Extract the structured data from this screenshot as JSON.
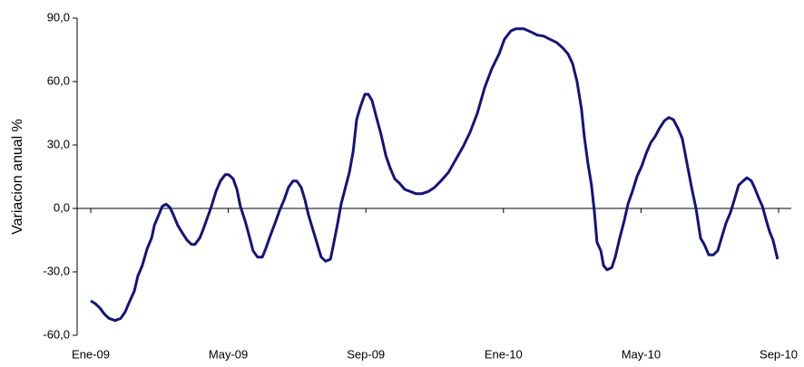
{
  "chart_data": {
    "type": "line",
    "y_label": "Variacion anual %",
    "xticks": [
      {
        "value": 0,
        "label": "Ene-09"
      },
      {
        "value": 4,
        "label": "May-09"
      },
      {
        "value": 8,
        "label": "Sep-09"
      },
      {
        "value": 12,
        "label": "Ene-10"
      },
      {
        "value": 16,
        "label": "May-10"
      },
      {
        "value": 20,
        "label": "Sep-10"
      }
    ],
    "xlim": [
      0,
      20
    ],
    "ylim": [
      -60,
      90
    ],
    "yticks": [
      {
        "value": -60,
        "label": "-60,0"
      },
      {
        "value": -30,
        "label": "-30,0"
      },
      {
        "value": 0,
        "label": "0,0"
      },
      {
        "value": 30,
        "label": "30,0"
      },
      {
        "value": 60,
        "label": "60,0"
      },
      {
        "value": 90,
        "label": "90,0"
      }
    ],
    "x": [
      0,
      0.13,
      0.26,
      0.4,
      0.53,
      0.71,
      0.87,
      1.0,
      1.13,
      1.27,
      1.37,
      1.5,
      1.64,
      1.77,
      1.85,
      1.98,
      2.08,
      2.19,
      2.3,
      2.4,
      2.53,
      2.66,
      2.8,
      2.93,
      3.03,
      3.17,
      3.27,
      3.4,
      3.51,
      3.64,
      3.77,
      3.91,
      4.01,
      4.14,
      4.25,
      4.35,
      4.49,
      4.59,
      4.72,
      4.85,
      4.99,
      5.09,
      5.22,
      5.36,
      5.49,
      5.62,
      5.75,
      5.88,
      5.99,
      6.12,
      6.23,
      6.33,
      6.46,
      6.57,
      6.7,
      6.83,
      6.97,
      7.07,
      7.18,
      7.28,
      7.39,
      7.52,
      7.63,
      7.73,
      7.84,
      7.97,
      8.07,
      8.18,
      8.31,
      8.44,
      8.58,
      8.71,
      8.84,
      8.97,
      9.13,
      9.29,
      9.45,
      9.63,
      9.82,
      10.0,
      10.18,
      10.4,
      10.61,
      10.82,
      11.03,
      11.24,
      11.45,
      11.66,
      11.87,
      12.03,
      12.22,
      12.37,
      12.59,
      12.8,
      12.98,
      13.17,
      13.35,
      13.54,
      13.72,
      13.88,
      14.01,
      14.14,
      14.27,
      14.35,
      14.46,
      14.56,
      14.64,
      14.72,
      14.83,
      14.91,
      15.01,
      15.15,
      15.25,
      15.38,
      15.51,
      15.62,
      15.75,
      15.88,
      16.02,
      16.15,
      16.28,
      16.41,
      16.54,
      16.68,
      16.81,
      16.94,
      17.07,
      17.2,
      17.34,
      17.47,
      17.6,
      17.73,
      17.84,
      17.97,
      18.1,
      18.23,
      18.34,
      18.47,
      18.6,
      18.73,
      18.84,
      18.97,
      19.08,
      19.21,
      19.31,
      19.42,
      19.53,
      19.63,
      19.74,
      19.84,
      19.97
    ],
    "series": [
      {
        "color": "#14147a",
        "values": [
          -43.7,
          -45,
          -47,
          -50,
          -52,
          -53,
          -52,
          -49,
          -44,
          -39,
          -32,
          -27,
          -19,
          -14,
          -8,
          -3,
          1,
          2,
          0.5,
          -3,
          -8,
          -11.5,
          -15,
          -17,
          -17,
          -14,
          -10,
          -4,
          1,
          8,
          13,
          16,
          16,
          14,
          9,
          1,
          -6,
          -12,
          -20,
          -23,
          -23,
          -19,
          -13,
          -7,
          -1,
          4,
          10,
          13,
          13,
          10,
          4,
          -3,
          -10,
          -16,
          -23,
          -25,
          -24,
          -16,
          -7,
          2,
          9,
          17,
          27,
          42,
          48,
          54,
          54,
          51,
          43,
          35,
          25,
          19,
          14,
          12,
          9,
          8,
          7,
          7,
          8,
          10,
          13,
          17,
          23,
          29,
          36,
          45,
          57,
          66,
          73,
          80,
          84,
          85,
          85,
          83.5,
          82,
          81.5,
          80,
          78.5,
          76,
          73,
          68.5,
          60,
          47,
          34,
          21,
          11,
          -1,
          -16,
          -20,
          -27,
          -29,
          -28,
          -23,
          -14,
          -6,
          2,
          8,
          15,
          20,
          26,
          31,
          34,
          38,
          41.5,
          43,
          42,
          38,
          33,
          21,
          10,
          0,
          -14,
          -17,
          -22,
          -22,
          -20,
          -14,
          -7,
          -2,
          5,
          11,
          13,
          14.5,
          13,
          9.5,
          5,
          1,
          -5,
          -11,
          -15,
          -24
        ]
      }
    ]
  }
}
